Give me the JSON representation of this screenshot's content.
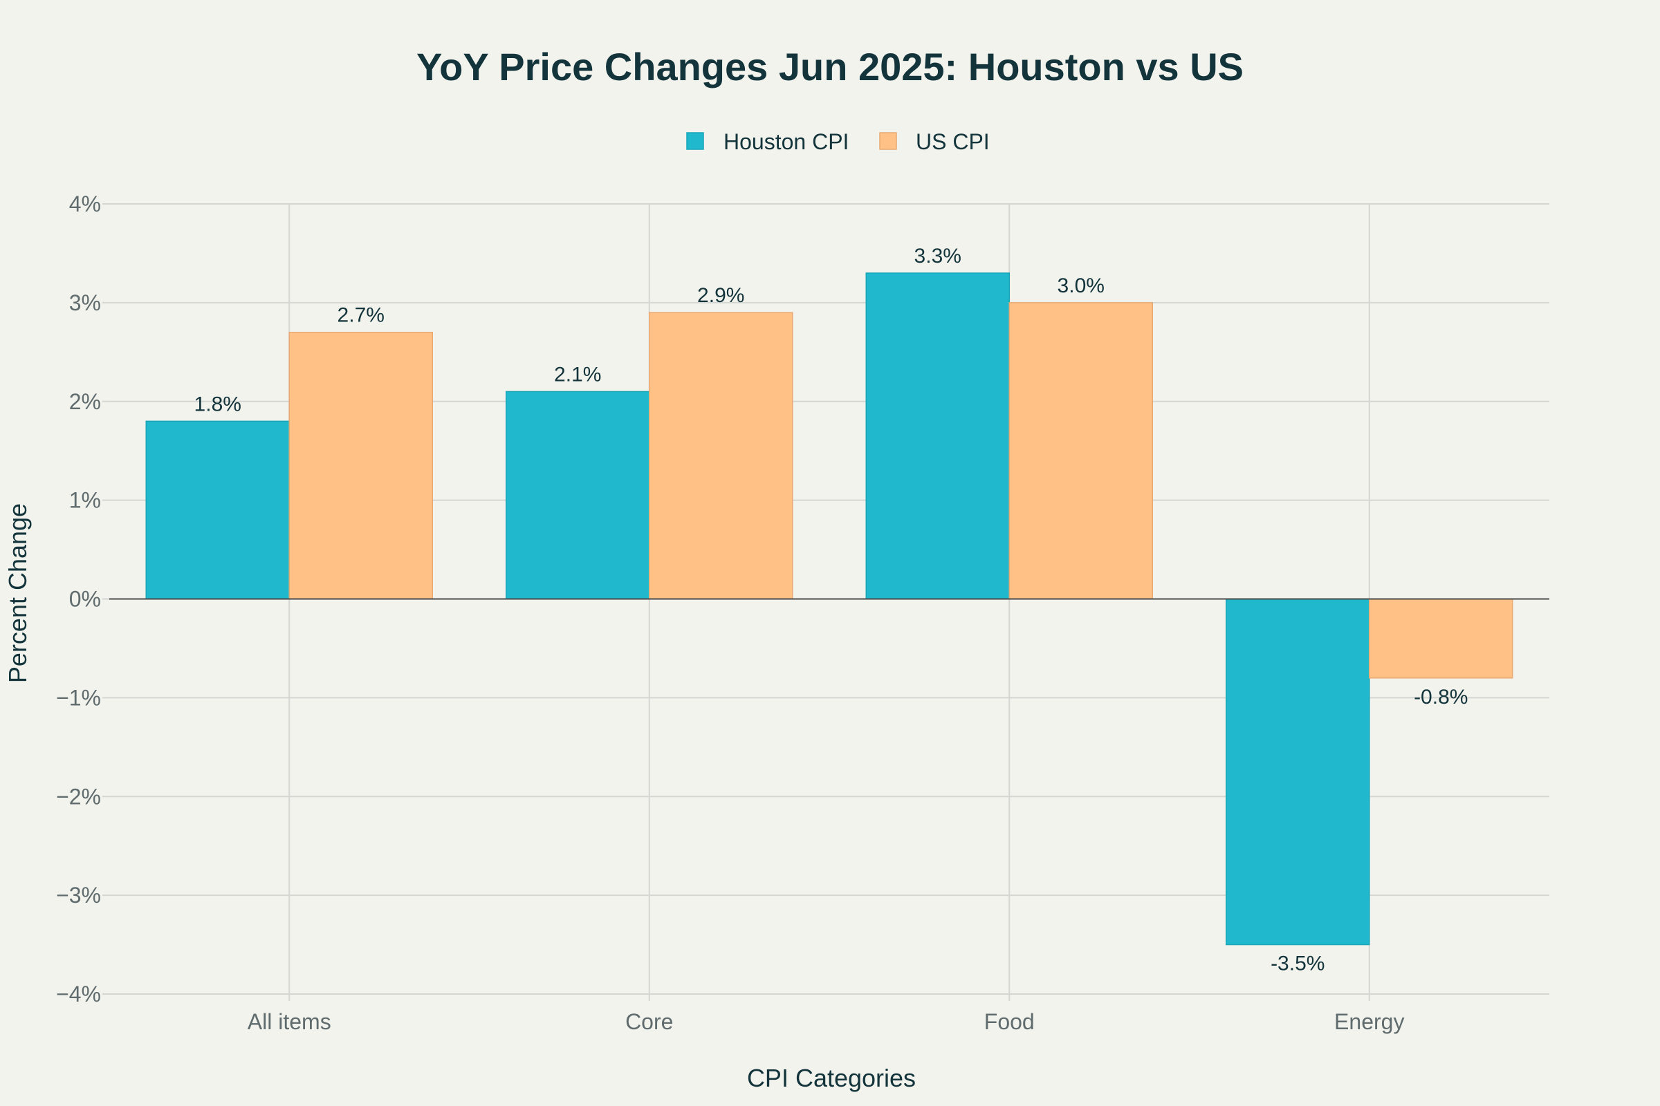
{
  "chart_data": {
    "type": "bar",
    "title": "YoY Price Changes Jun 2025: Houston vs US",
    "xlabel": "CPI Categories",
    "ylabel": "Percent Change",
    "categories": [
      "All items",
      "Core",
      "Food",
      "Energy"
    ],
    "series": [
      {
        "name": "Houston CPI",
        "color": "#1fb8cd",
        "values": [
          1.8,
          2.1,
          3.3,
          -3.5
        ],
        "labels": [
          "1.8%",
          "2.1%",
          "3.3%",
          "-3.5%"
        ]
      },
      {
        "name": "US CPI",
        "color": "#ffc185",
        "values": [
          2.7,
          2.9,
          3.0,
          -0.8
        ],
        "labels": [
          "2.7%",
          "2.9%",
          "3.0%",
          "-0.8%"
        ]
      }
    ],
    "ylim": [
      -4,
      4
    ],
    "yticks": [
      4,
      3,
      2,
      1,
      0,
      -1,
      -2,
      -3,
      -4
    ],
    "ytick_labels": [
      "4%",
      "3%",
      "2%",
      "1%",
      "0%",
      "−1%",
      "−2%",
      "−3%",
      "−4%"
    ],
    "grid": true,
    "legend_position": "top-center",
    "background_color": "#f3f3ee",
    "grid_color": "#d4d6d2",
    "zero_line_color": "#4a4a4a"
  }
}
